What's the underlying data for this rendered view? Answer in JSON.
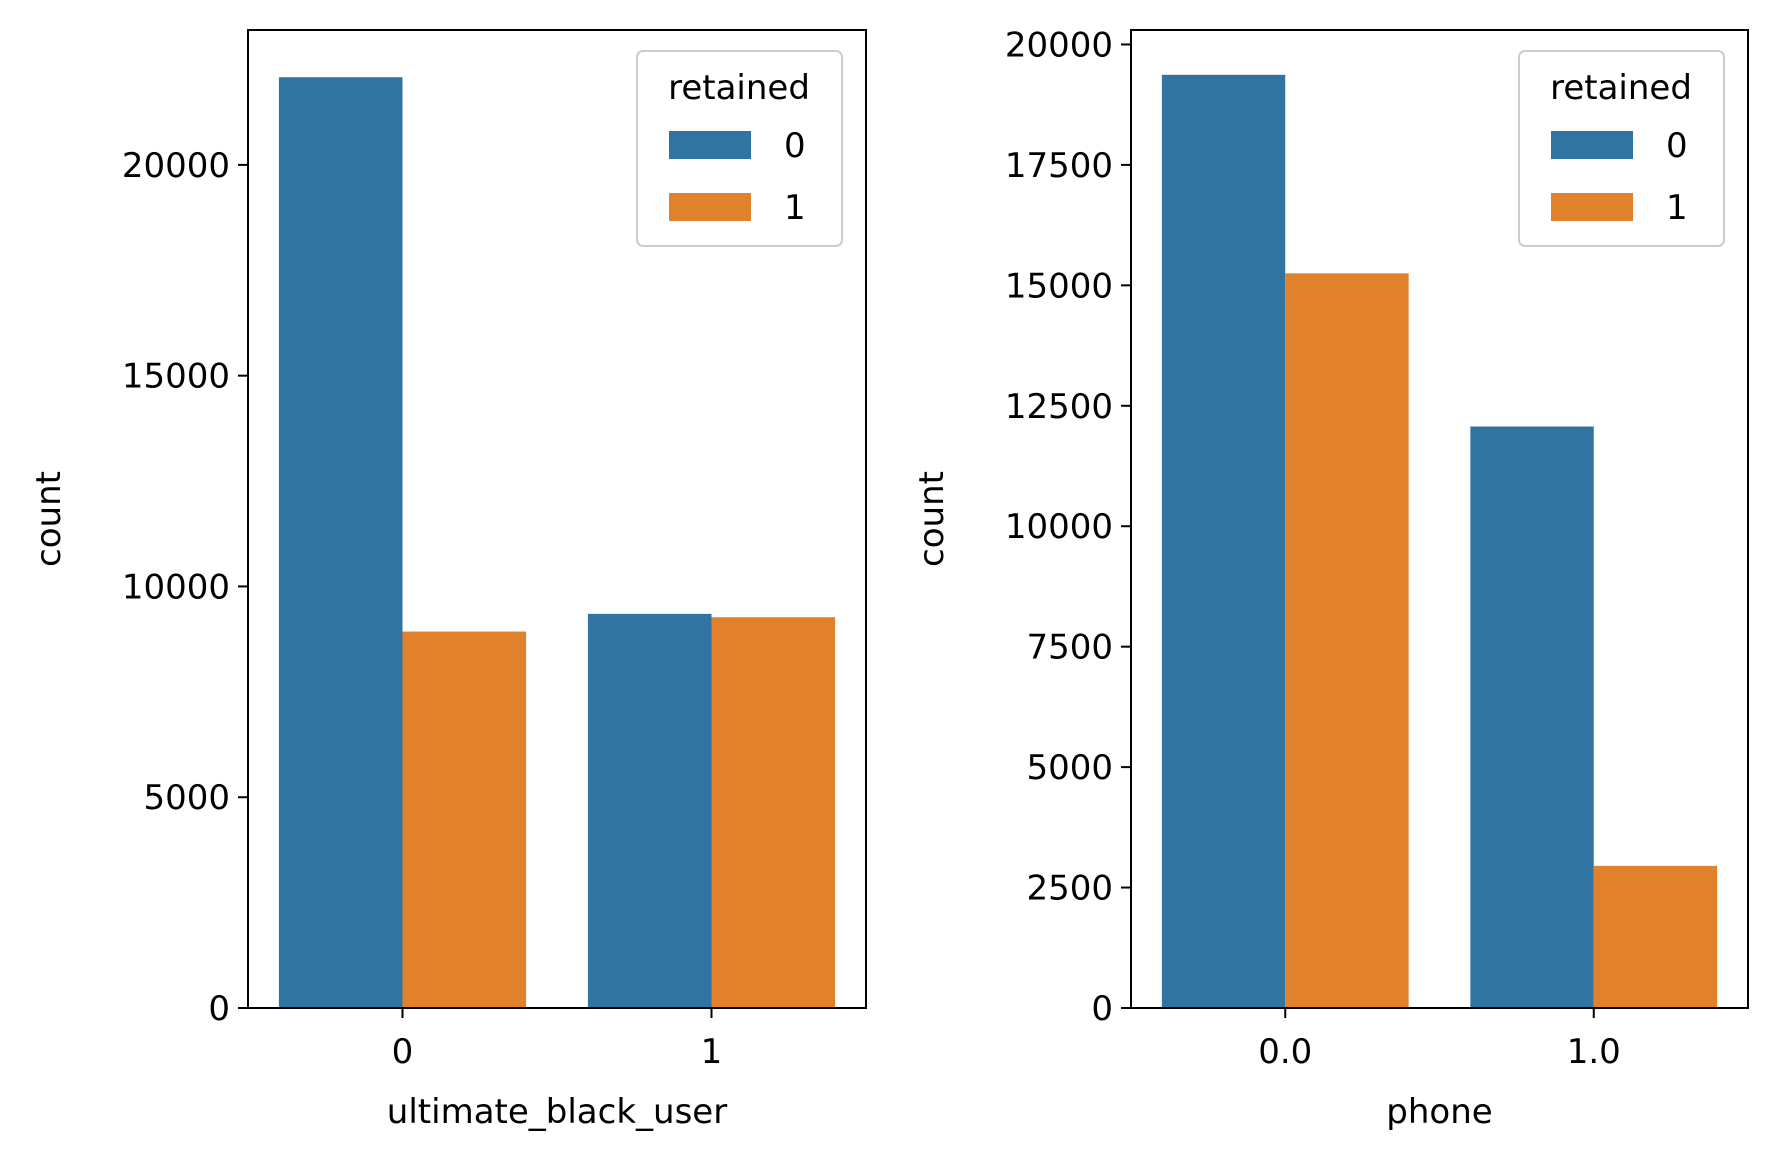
{
  "colors": {
    "series_0": "#3274a1",
    "series_1": "#e1812c"
  },
  "chart_data": [
    {
      "type": "bar",
      "xlabel": "ultimate_black_user",
      "ylabel": "count",
      "categories": [
        "0",
        "1"
      ],
      "ylim": [
        0,
        23200
      ],
      "yticks": [
        0,
        5000,
        10000,
        15000,
        20000
      ],
      "yticklabels": [
        "0",
        "5000",
        "10000",
        "15000",
        "20000"
      ],
      "legend": {
        "title": "retained",
        "position": "top-right"
      },
      "series": [
        {
          "name": "0",
          "values": [
            22080,
            9350
          ]
        },
        {
          "name": "1",
          "values": [
            8930,
            9270
          ]
        }
      ]
    },
    {
      "type": "bar",
      "xlabel": "phone",
      "ylabel": "count",
      "categories": [
        "0.0",
        "1.0"
      ],
      "ylim": [
        0,
        20300
      ],
      "yticks": [
        0,
        2500,
        5000,
        7500,
        10000,
        12500,
        15000,
        17500,
        20000
      ],
      "yticklabels": [
        "0",
        "2500",
        "5000",
        "7500",
        "10000",
        "12500",
        "15000",
        "17500",
        "20000"
      ],
      "legend": {
        "title": "retained",
        "position": "top-right"
      },
      "series": [
        {
          "name": "0",
          "values": [
            19370,
            12070
          ]
        },
        {
          "name": "1",
          "values": [
            15250,
            2950
          ]
        }
      ]
    }
  ]
}
